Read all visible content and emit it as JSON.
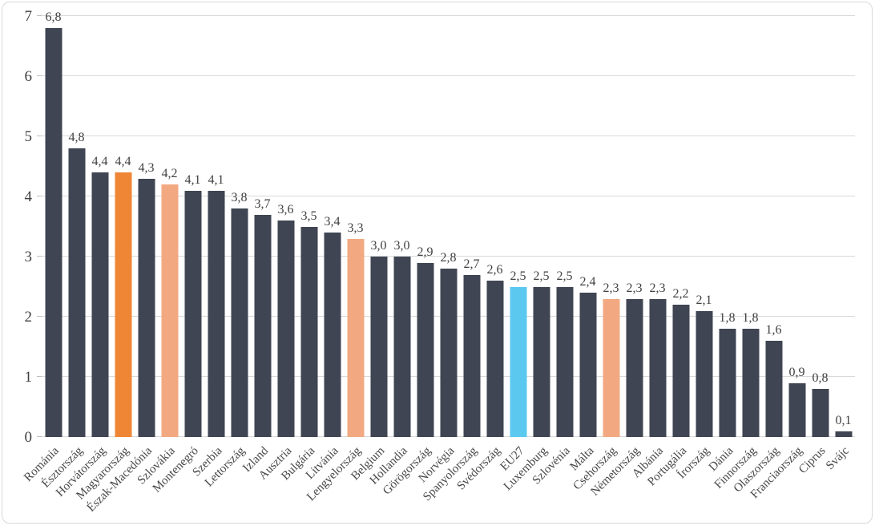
{
  "chart_data": {
    "type": "bar",
    "title": "",
    "xlabel": "",
    "ylabel": "",
    "ylim": [
      0,
      7
    ],
    "yticks": [
      0,
      1,
      2,
      3,
      4,
      5,
      6,
      7
    ],
    "grid": "horizontal",
    "legend": "none",
    "decimal_separator": ",",
    "categories": [
      "Románia",
      "Észtország",
      "Horvátország",
      "Magyarország",
      "Észak-Macedónia",
      "Szlovákia",
      "Montenegró",
      "Szerbia",
      "Lettország",
      "Izland",
      "Ausztria",
      "Bulgária",
      "Litvánia",
      "Lengyelország",
      "Belgium",
      "Hollandia",
      "Görögország",
      "Norvégia",
      "Spanyolország",
      "Svédország",
      "EU27",
      "Luxemburg",
      "Szlovénia",
      "Málta",
      "Csehország",
      "Németország",
      "Albánia",
      "Portugália",
      "Írország",
      "Dánia",
      "Finnország",
      "Olaszország",
      "Franciaország",
      "Ciprus",
      "Svájc"
    ],
    "values": [
      6.8,
      4.8,
      4.4,
      4.4,
      4.3,
      4.2,
      4.1,
      4.1,
      3.8,
      3.7,
      3.6,
      3.5,
      3.4,
      3.3,
      3.0,
      3.0,
      2.9,
      2.8,
      2.7,
      2.6,
      2.5,
      2.5,
      2.5,
      2.4,
      2.3,
      2.3,
      2.3,
      2.2,
      2.1,
      1.8,
      1.8,
      1.6,
      0.9,
      0.8,
      0.1
    ],
    "value_labels": [
      "6,8",
      "4,8",
      "4,4",
      "4,4",
      "4,3",
      "4,2",
      "4,1",
      "4,1",
      "3,8",
      "3,7",
      "3,6",
      "3,5",
      "3,4",
      "3,3",
      "3,0",
      "3,0",
      "2,9",
      "2,8",
      "2,7",
      "2,6",
      "2,5",
      "2,5",
      "2,5",
      "2,4",
      "2,3",
      "2,3",
      "2,3",
      "2,2",
      "2,1",
      "1,8",
      "1,8",
      "1,6",
      "0,9",
      "0,8",
      "0,1"
    ],
    "bar_styles": [
      "default",
      "default",
      "default",
      "accent",
      "default",
      "secondary",
      "default",
      "default",
      "default",
      "default",
      "default",
      "default",
      "default",
      "secondary",
      "default",
      "default",
      "default",
      "default",
      "default",
      "default",
      "eu",
      "default",
      "default",
      "default",
      "secondary",
      "default",
      "default",
      "default",
      "default",
      "default",
      "default",
      "default",
      "default",
      "default",
      "default"
    ],
    "colors": {
      "default": "#3f4552",
      "accent": "#ef8635",
      "secondary": "#f2a981",
      "eu": "#5bc8f0",
      "gridline": "#d9d9d9",
      "tick": "#bfbfbf",
      "label": "#404040",
      "frame_border": "#d9d9d9"
    }
  }
}
